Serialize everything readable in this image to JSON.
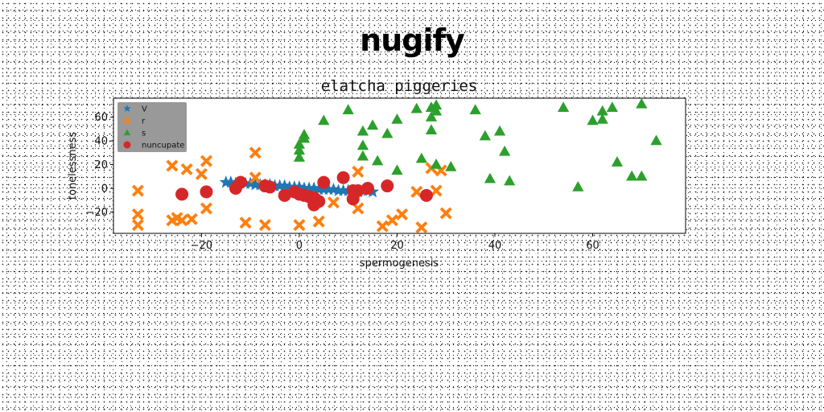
{
  "suptitle": "nugify",
  "chart_data": {
    "type": "scatter",
    "title": "elatcha piggeries",
    "xlabel": "spermogenesis",
    "ylabel": "tonelessness",
    "xlim": [
      -38,
      79
    ],
    "ylim": [
      -38,
      76
    ],
    "xticks": [
      -20,
      0,
      20,
      40,
      60
    ],
    "yticks": [
      -20,
      0,
      20,
      40,
      60
    ],
    "legend_position": "top-left",
    "series": [
      {
        "name": "V",
        "color": "#1f77b4",
        "marker": "star",
        "points": [
          [
            -15,
            5
          ],
          [
            -14,
            5
          ],
          [
            -13,
            4
          ],
          [
            -12,
            5
          ],
          [
            -11,
            4
          ],
          [
            -10,
            4
          ],
          [
            -9,
            3
          ],
          [
            -8,
            3
          ],
          [
            -7,
            3
          ],
          [
            -6,
            3
          ],
          [
            -5,
            2
          ],
          [
            -4,
            2
          ],
          [
            -3,
            2
          ],
          [
            -2,
            1
          ],
          [
            -1,
            1
          ],
          [
            0,
            1
          ],
          [
            1,
            0
          ],
          [
            2,
            0
          ],
          [
            3,
            0
          ],
          [
            4,
            -1
          ],
          [
            5,
            -1
          ],
          [
            6,
            -1
          ],
          [
            7,
            -1
          ],
          [
            8,
            -2
          ],
          [
            9,
            -2
          ],
          [
            10,
            -2
          ],
          [
            11,
            -2
          ],
          [
            12,
            -3
          ],
          [
            13,
            -2
          ],
          [
            14,
            -2
          ],
          [
            15,
            -3
          ]
        ]
      },
      {
        "name": "r",
        "color": "#ff7f0e",
        "marker": "x",
        "points": [
          [
            -33,
            -2
          ],
          [
            -33,
            -22
          ],
          [
            -33,
            -31
          ],
          [
            -26,
            19
          ],
          [
            -26,
            -27
          ],
          [
            -25,
            -25
          ],
          [
            -24,
            -27
          ],
          [
            -23,
            16
          ],
          [
            -22,
            -26
          ],
          [
            -20,
            12
          ],
          [
            -19,
            23
          ],
          [
            -19,
            -17
          ],
          [
            -11,
            -29
          ],
          [
            -9,
            30
          ],
          [
            -9,
            9
          ],
          [
            -7,
            -31
          ],
          [
            0,
            -31
          ],
          [
            4,
            -28
          ],
          [
            7,
            -12
          ],
          [
            12,
            14
          ],
          [
            12,
            -17
          ],
          [
            17,
            -32
          ],
          [
            19,
            -27
          ],
          [
            21,
            -22
          ],
          [
            24,
            -3
          ],
          [
            25,
            -33
          ],
          [
            27,
            17
          ],
          [
            28,
            -2
          ],
          [
            29,
            15
          ],
          [
            30,
            -21
          ]
        ]
      },
      {
        "name": "s",
        "color": "#2ca02c",
        "marker": "triangle",
        "points": [
          [
            0,
            26
          ],
          [
            0,
            32
          ],
          [
            0,
            37
          ],
          [
            1,
            42
          ],
          [
            1,
            45
          ],
          [
            5,
            57
          ],
          [
            10,
            66
          ],
          [
            13,
            48
          ],
          [
            13,
            36
          ],
          [
            13,
            27
          ],
          [
            15,
            53
          ],
          [
            16,
            23
          ],
          [
            18,
            46
          ],
          [
            20,
            58
          ],
          [
            20,
            15
          ],
          [
            24,
            67
          ],
          [
            25,
            25
          ],
          [
            27,
            68
          ],
          [
            27,
            68
          ],
          [
            27,
            49
          ],
          [
            27,
            60
          ],
          [
            28,
            65
          ],
          [
            28,
            20
          ],
          [
            28,
            70
          ],
          [
            31,
            18
          ],
          [
            36,
            66
          ],
          [
            38,
            44
          ],
          [
            39,
            8
          ],
          [
            41,
            48
          ],
          [
            42,
            31
          ],
          [
            43,
            6
          ],
          [
            54,
            68
          ],
          [
            57,
            1
          ],
          [
            60,
            57
          ],
          [
            62,
            65
          ],
          [
            62,
            58
          ],
          [
            64,
            68
          ],
          [
            65,
            22
          ],
          [
            68,
            10
          ],
          [
            70,
            71
          ],
          [
            70,
            10
          ],
          [
            73,
            40
          ]
        ]
      },
      {
        "name": "nuncupate",
        "color": "#d62728",
        "marker": "circle",
        "points": [
          [
            -24,
            -5
          ],
          [
            -19,
            -3
          ],
          [
            -13,
            0
          ],
          [
            -12,
            5
          ],
          [
            -7,
            2
          ],
          [
            -6,
            1
          ],
          [
            -3,
            -6
          ],
          [
            -1,
            -3
          ],
          [
            0,
            -5
          ],
          [
            1,
            -6
          ],
          [
            2,
            -7
          ],
          [
            3,
            -8
          ],
          [
            3,
            -14
          ],
          [
            4,
            -11
          ],
          [
            5,
            5
          ],
          [
            9,
            9
          ],
          [
            11,
            -2
          ],
          [
            11,
            -9
          ],
          [
            12,
            -2
          ],
          [
            14,
            0
          ],
          [
            18,
            2
          ],
          [
            26,
            -6
          ]
        ]
      }
    ]
  }
}
